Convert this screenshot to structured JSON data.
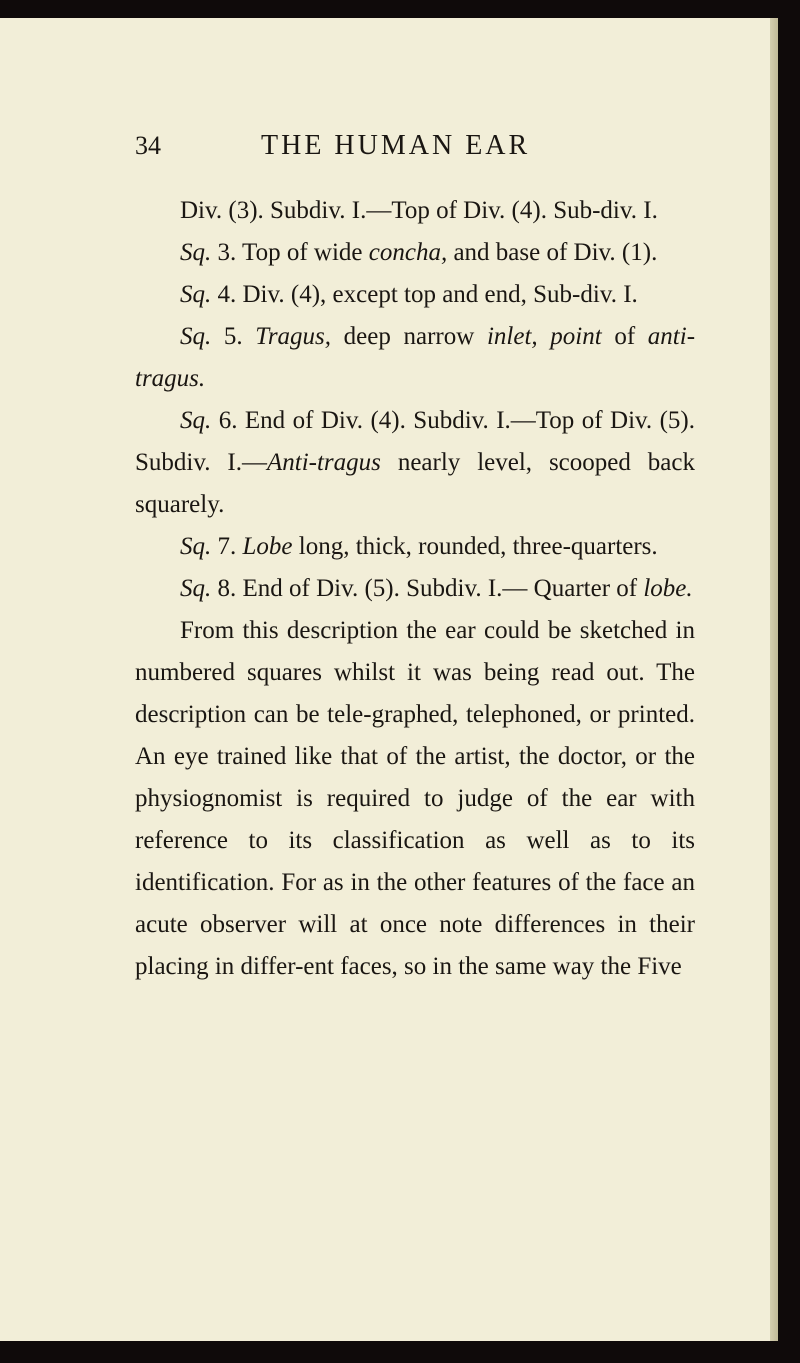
{
  "colors": {
    "background": "#f2eed8",
    "text": "#1a1612",
    "border": "#0f0a0a"
  },
  "typography": {
    "body_fontsize": 25,
    "header_fontsize": 28,
    "pagenum_fontsize": 26,
    "line_height": 1.68,
    "indent": 45,
    "letter_spacing_title": 3
  },
  "header": {
    "page_number": "34",
    "title": "THE HUMAN EAR"
  },
  "paragraphs": [
    {
      "segments": [
        {
          "text": "Div. (3). Subdiv. I.—Top of Div. (4). Sub-div. I.",
          "italic": false
        }
      ]
    },
    {
      "segments": [
        {
          "text": "Sq.",
          "italic": true
        },
        {
          "text": " 3. Top of wide ",
          "italic": false
        },
        {
          "text": "concha,",
          "italic": true
        },
        {
          "text": " and base of Div. (1).",
          "italic": false
        }
      ]
    },
    {
      "segments": [
        {
          "text": "Sq.",
          "italic": true
        },
        {
          "text": " 4. Div. (4), except top and end, Sub-div. I.",
          "italic": false
        }
      ]
    },
    {
      "segments": [
        {
          "text": "Sq.",
          "italic": true
        },
        {
          "text": " 5. ",
          "italic": false
        },
        {
          "text": "Tragus,",
          "italic": true
        },
        {
          "text": " deep narrow ",
          "italic": false
        },
        {
          "text": "inlet, point",
          "italic": true
        },
        {
          "text": " of ",
          "italic": false
        },
        {
          "text": "anti-tragus.",
          "italic": true
        }
      ]
    },
    {
      "segments": [
        {
          "text": "Sq.",
          "italic": true
        },
        {
          "text": " 6. End of Div. (4). Subdiv. I.—Top of Div. (5). Subdiv. I.—",
          "italic": false
        },
        {
          "text": "Anti-tragus",
          "italic": true
        },
        {
          "text": " nearly level, scooped back squarely.",
          "italic": false
        }
      ]
    },
    {
      "segments": [
        {
          "text": "Sq.",
          "italic": true
        },
        {
          "text": " 7. ",
          "italic": false
        },
        {
          "text": "Lobe",
          "italic": true
        },
        {
          "text": " long, thick, rounded, three-quarters.",
          "italic": false
        }
      ]
    },
    {
      "segments": [
        {
          "text": "Sq.",
          "italic": true
        },
        {
          "text": " 8. End of Div. (5). Subdiv. I.— Quarter of ",
          "italic": false
        },
        {
          "text": "lobe.",
          "italic": true
        }
      ]
    },
    {
      "segments": [
        {
          "text": "From this description the ear could be sketched in numbered squares whilst it was being read out. The description can be tele-graphed, telephoned, or printed. An eye trained like that of the artist, the doctor, or the physiognomist is required to judge of the ear with reference to its classification as well as to its identification. For as in the other features of the face an acute observer will at once note differences in their placing in differ-ent faces, so in the same way the Five",
          "italic": false
        }
      ]
    }
  ]
}
